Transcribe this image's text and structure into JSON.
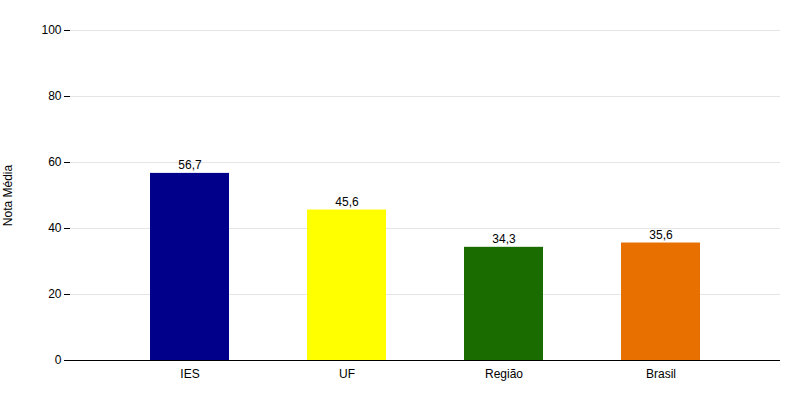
{
  "chart_data": {
    "type": "bar",
    "categories": [
      "IES",
      "UF",
      "Região",
      "Brasil"
    ],
    "values": [
      56.7,
      45.6,
      34.3,
      35.6
    ],
    "value_labels": [
      "56,7",
      "45,6",
      "34,3",
      "35,6"
    ],
    "colors": [
      "#00008B",
      "#FFFF00",
      "#1A6B00",
      "#E87000"
    ],
    "ylabel": "Nota Média",
    "ylim": [
      0,
      100
    ],
    "yticks": [
      0,
      20,
      40,
      60,
      80,
      100
    ],
    "grid": true,
    "data_labels": true
  }
}
